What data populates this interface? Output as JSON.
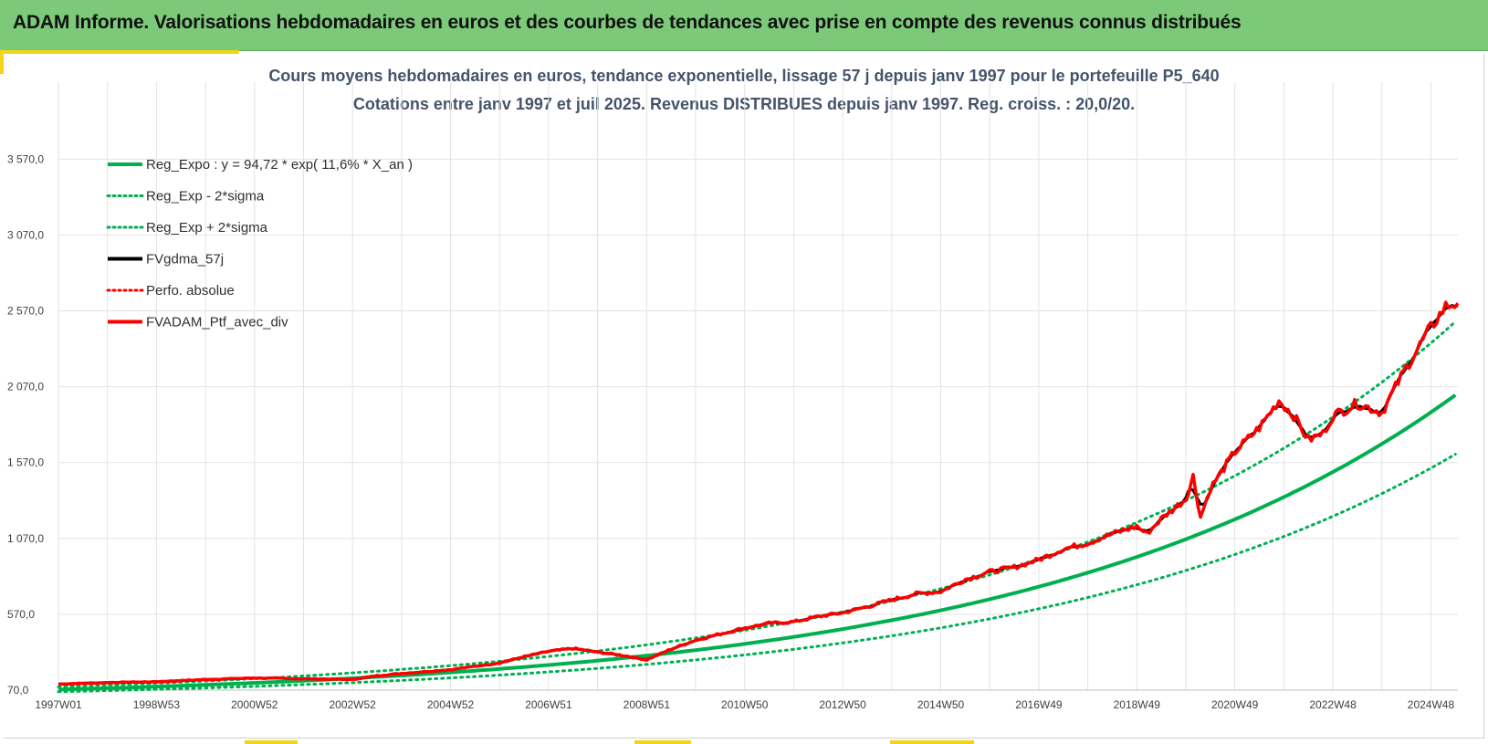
{
  "header": {
    "title": "ADAM Informe. Valorisations hebdomadaires en euros et des courbes de tendances avec prise en compte des revenus connus distribués"
  },
  "colors": {
    "banner": "#7dc97a",
    "accent": "#f4d417",
    "title_text": "#44546a",
    "regression": "#00b050",
    "smoothed": "#000000",
    "portfolio": "#ff0000"
  },
  "chart_data": {
    "type": "line",
    "title": "Cours moyens hebdomadaires  en euros, tendance exponentielle, lissage 57 j depuis janv 1997 pour le portefeuille P5_640",
    "subtitle": "Cotations entre janv 1997 et juil 2025. Revenus DISTRIBUES depuis janv 1997. Reg. croiss. : 20,0/20.",
    "xlabel": "",
    "ylabel": "",
    "x_tick_labels": [
      "1997W01",
      "1998W53",
      "2000W52",
      "2002W52",
      "2004W52",
      "2006W51",
      "2008W51",
      "2010W50",
      "2012W50",
      "2014W50",
      "2016W49",
      "2018W49",
      "2020W49",
      "2022W48",
      "2024W48"
    ],
    "x_ticks_year": [
      1997.0,
      1999.0,
      2001.0,
      2003.0,
      2005.0,
      2007.0,
      2009.0,
      2011.0,
      2013.0,
      2015.0,
      2017.0,
      2019.0,
      2021.0,
      2023.0,
      2025.0
    ],
    "x_range_year": [
      1997.0,
      2025.55
    ],
    "y_tick_labels": [
      "70,0",
      "570,0",
      "1 070,0",
      "1 570,0",
      "2 070,0",
      "2 570,0",
      "3 070,0",
      "3 570,0"
    ],
    "y_ticks": [
      70,
      570,
      1070,
      1570,
      2070,
      2570,
      3070,
      3570
    ],
    "ylim": [
      70,
      3570
    ],
    "grid": true,
    "legend_position": "top-left",
    "regression": {
      "a": 94.72,
      "rate": 0.116,
      "sigma_factor": 1.24
    },
    "series": [
      {
        "name": "Reg_Expo : y = 94,72 * exp( 11,6% *  X_an )",
        "style": "solid",
        "color": "#00b050"
      },
      {
        "name": "Reg_Exp - 2*sigma",
        "style": "dotted",
        "color": "#00b050"
      },
      {
        "name": "Reg_Exp + 2*sigma",
        "style": "dotted",
        "color": "#00b050"
      },
      {
        "name": "FVgdma_57j",
        "style": "solid",
        "color": "#000000"
      },
      {
        "name": "Perfo. absolue",
        "style": "dotted",
        "color": "#ff0000"
      },
      {
        "name": "FVADAM_Ptf_avec_div",
        "style": "solid",
        "color": "#ff0000"
      }
    ],
    "portfolio_points": [
      [
        1997.0,
        110
      ],
      [
        1998.0,
        120
      ],
      [
        1999.0,
        125
      ],
      [
        2000.0,
        140
      ],
      [
        2001.0,
        150
      ],
      [
        2002.0,
        145
      ],
      [
        2003.0,
        140
      ],
      [
        2003.5,
        165
      ],
      [
        2004.0,
        180
      ],
      [
        2005.0,
        205
      ],
      [
        2006.0,
        250
      ],
      [
        2006.5,
        290
      ],
      [
        2007.0,
        325
      ],
      [
        2007.5,
        345
      ],
      [
        2008.0,
        320
      ],
      [
        2008.5,
        300
      ],
      [
        2009.0,
        270
      ],
      [
        2009.5,
        340
      ],
      [
        2010.0,
        400
      ],
      [
        2010.5,
        440
      ],
      [
        2011.0,
        480
      ],
      [
        2011.5,
        510
      ],
      [
        2012.0,
        520
      ],
      [
        2012.5,
        555
      ],
      [
        2013.0,
        580
      ],
      [
        2013.5,
        620
      ],
      [
        2014.0,
        665
      ],
      [
        2014.5,
        705
      ],
      [
        2015.0,
        720
      ],
      [
        2015.5,
        800
      ],
      [
        2016.0,
        850
      ],
      [
        2016.5,
        880
      ],
      [
        2017.0,
        930
      ],
      [
        2017.5,
        1000
      ],
      [
        2018.0,
        1040
      ],
      [
        2018.5,
        1100
      ],
      [
        2019.0,
        1150
      ],
      [
        2019.2,
        1100
      ],
      [
        2019.5,
        1200
      ],
      [
        2020.0,
        1330
      ],
      [
        2020.15,
        1480
      ],
      [
        2020.3,
        1210
      ],
      [
        2020.5,
        1400
      ],
      [
        2021.0,
        1640
      ],
      [
        2021.5,
        1800
      ],
      [
        2021.9,
        1980
      ],
      [
        2022.2,
        1880
      ],
      [
        2022.5,
        1720
      ],
      [
        2022.8,
        1760
      ],
      [
        2023.0,
        1880
      ],
      [
        2023.5,
        1960
      ],
      [
        2024.0,
        1900
      ],
      [
        2024.5,
        2200
      ],
      [
        2025.0,
        2460
      ],
      [
        2025.3,
        2600
      ],
      [
        2025.55,
        2620
      ]
    ]
  },
  "legend": {
    "items": [
      "Reg_Expo : y = 94,72 * exp( 11,6% *  X_an )",
      "Reg_Exp - 2*sigma",
      "Reg_Exp + 2*sigma",
      "FVgdma_57j",
      "Perfo. absolue",
      "FVADAM_Ptf_avec_div"
    ]
  }
}
